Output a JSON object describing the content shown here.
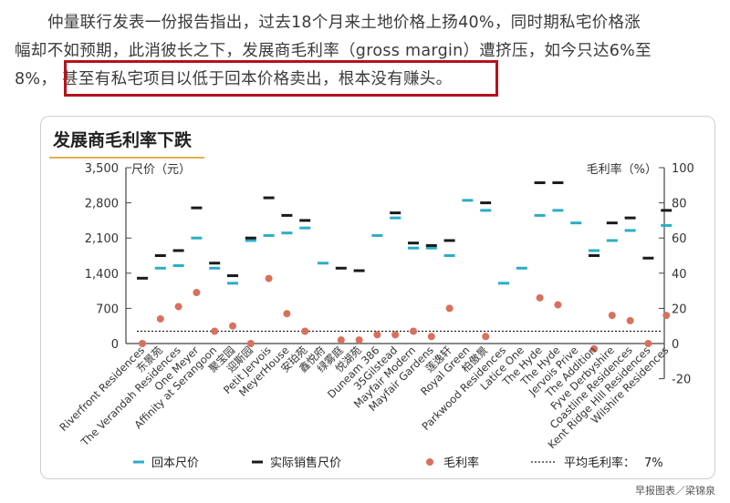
{
  "article": {
    "line1": "仲量联行发表一份报告指出，过去18个月来土地价格上扬40%，同时期私宅价格涨",
    "line2": "幅却不如预期，此消彼长之下，发展商毛利率（gross margin）遭挤压，如今只达6%至",
    "line3_prefix": "8%，",
    "line3_highlight": "甚至有私宅项目以低于回本价格卖出，根本没有赚头。"
  },
  "source": "早报图表／梁锦泉",
  "colors": {
    "breakeven": "#2aaec4",
    "actual": "#1a1a1a",
    "margin": "#d9705f",
    "highlight": "#b5121b"
  },
  "chart_data": {
    "type": "scatter",
    "title": "发展商毛利率下跌",
    "ylabel_left": "尺价（元）",
    "ylabel_right": "毛利率（%）",
    "ylim_left": [
      0,
      3500
    ],
    "yticks_left": [
      "0",
      "700",
      "1,400",
      "2,100",
      "2,800",
      "3,500"
    ],
    "ylim_right": [
      -20,
      100
    ],
    "yticks_right": [
      "-20",
      "0",
      "20",
      "40",
      "60",
      "80",
      "100"
    ],
    "categories": [
      "Riverfront Residences",
      "东景苑",
      "The Verandah Residences",
      "One Meyer",
      "Affinity at Serangoon",
      "聚宝园",
      "迎斯园",
      "Petit Jervois",
      "MeyerHouse",
      "安珀苑",
      "鑫悦府",
      "绿雾庭",
      "悦湖苑",
      "Duneam 386",
      "35Gilstead",
      "Mayfair Modern",
      "Mayfair Gardens",
      "莲逸轩",
      "Royal Green",
      "柏傲景",
      "Parkwood Residences",
      "Latice One",
      "The Hyde",
      "The Hyde",
      "Jervois Prive",
      "The Addition",
      "Fyve Derbyshire",
      "Coastline Residences",
      "Kent Ridge Hill Residences",
      "Wilshire Residences"
    ],
    "series": [
      {
        "name": "回本尺价",
        "values": [
          null,
          1500,
          1550,
          2100,
          1500,
          1200,
          2050,
          2150,
          2200,
          2300,
          1600,
          null,
          null,
          2150,
          2500,
          1900,
          1900,
          1750,
          2850,
          2650,
          1200,
          1500,
          2550,
          2650,
          2400,
          1850,
          2050,
          2250,
          null,
          2350
        ]
      },
      {
        "name": "实际销售尺价",
        "values": [
          1300,
          1750,
          1850,
          2700,
          1600,
          1350,
          2100,
          2900,
          2550,
          2450,
          null,
          1500,
          1450,
          null,
          2600,
          2000,
          1950,
          2050,
          null,
          2800,
          null,
          null,
          3200,
          3200,
          null,
          1750,
          2400,
          2500,
          1700,
          2650
        ]
      },
      {
        "name": "毛利率",
        "values": [
          0,
          14,
          21,
          29,
          7,
          10,
          0,
          37,
          17,
          7,
          null,
          2,
          2,
          5,
          5,
          7,
          4,
          20,
          null,
          4,
          null,
          null,
          26,
          22,
          null,
          -3,
          16,
          13,
          0,
          16
        ]
      }
    ],
    "average_margin_value": 7,
    "legend": {
      "breakeven": "回本尺价",
      "actual": "实际销售尺价",
      "margin": "毛利率",
      "average": "平均毛利率：",
      "average_value": "7%"
    },
    "grid": false,
    "legend_position": "bottom"
  }
}
